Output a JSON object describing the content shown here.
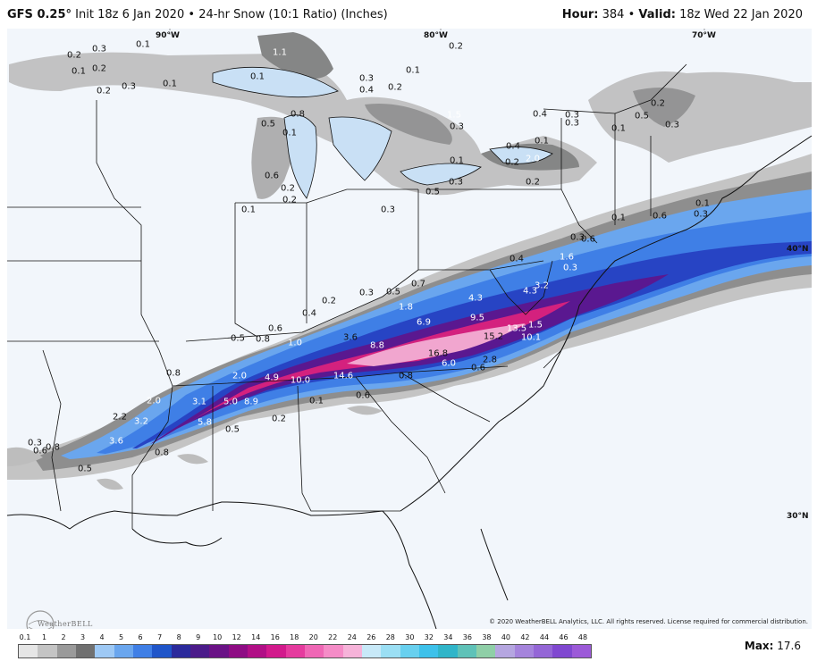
{
  "header": {
    "model": "GFS 0.25°",
    "init": "Init 18z 6 Jan 2020",
    "bullet": "•",
    "product": "24-hr Snow (10:1 Ratio) (Inches)",
    "hour_label": "Hour:",
    "hour_value": "384",
    "valid_label": "Valid:",
    "valid_value": "18z Wed 22 Jan 2020"
  },
  "map": {
    "lon_labels": [
      "90°W",
      "80°W",
      "70°W"
    ],
    "lat_labels": [
      "40°N",
      "30°N"
    ],
    "snow_values": [
      "0.1",
      "0.2",
      "0.3",
      "0.4",
      "0.5",
      "0.6",
      "0.7",
      "0.8",
      "1.0",
      "1.1",
      "1.5",
      "1.6",
      "1.8",
      "2.0",
      "2.2",
      "2.8",
      "3.1",
      "3.2",
      "3.6",
      "4.3",
      "4.9",
      "5.0",
      "5.8",
      "6.0",
      "6.9",
      "8.8",
      "8.9",
      "9.5",
      "10.0",
      "10.1",
      "13.5",
      "14.6",
      "15.2",
      "16.8"
    ]
  },
  "footer": {
    "logo": "WeatherBELL",
    "copyright": "© 2020 WeatherBELL Analytics, LLC. All rights reserved. License required for commercial distribution.",
    "max_label": "Max:",
    "max_value": "17.6"
  },
  "scale": {
    "ticks": [
      "0.1",
      "1",
      "2",
      "3",
      "4",
      "5",
      "6",
      "7",
      "8",
      "9",
      "10",
      "12",
      "14",
      "16",
      "18",
      "20",
      "22",
      "24",
      "26",
      "28",
      "30",
      "32",
      "34",
      "36",
      "38",
      "40",
      "42",
      "44",
      "46",
      "48"
    ],
    "colors": [
      "#e6e6e6",
      "#c4c4c4",
      "#9a9a9a",
      "#707070",
      "#9ec9f5",
      "#6aa6ee",
      "#3f7fe6",
      "#1f55c9",
      "#2b2a9c",
      "#4b1b8a",
      "#6a1286",
      "#8e0c84",
      "#b10f86",
      "#d21a8c",
      "#e53b9e",
      "#ef67b5",
      "#f58cc7",
      "#f6b3d9",
      "#c8e9f8",
      "#9bdff4",
      "#68d0ef",
      "#3dc1ea",
      "#30b5c9",
      "#5fc2b8",
      "#8fcfa7",
      "#b5a6e0",
      "#a584dc",
      "#9466d6",
      "#8048d0",
      "#9c5ad8"
    ]
  },
  "colors": {
    "map_bg": "#f2f6fb",
    "snow_light": "#b4b4b4",
    "snow_dark": "#6e6e6e",
    "snow_blue": "#5a96ea",
    "snow_deep_blue": "#2744c4",
    "snow_purple": "#5a1890",
    "snow_magenta": "#d4217e",
    "snow_pink": "#f1a6cf"
  }
}
